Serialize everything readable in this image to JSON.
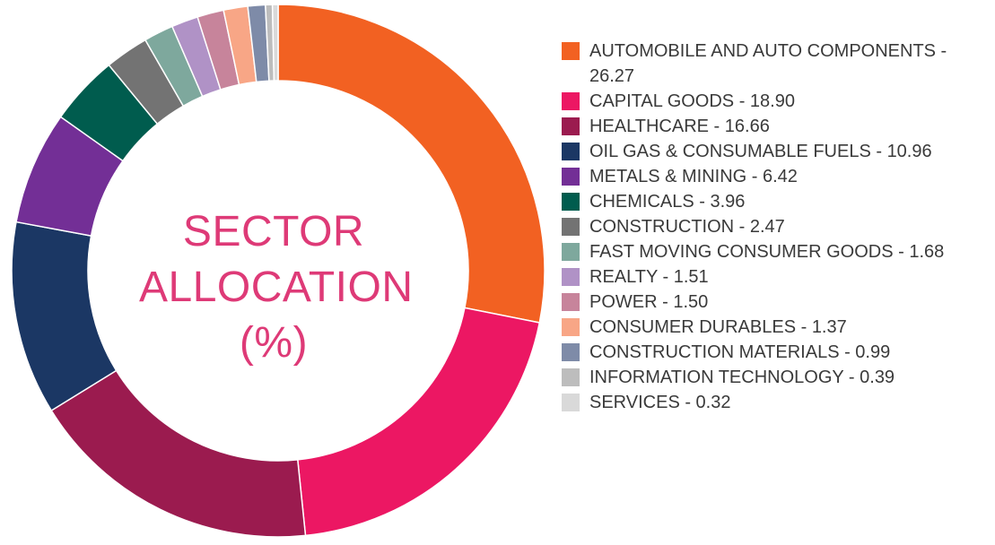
{
  "chart_data": {
    "type": "pie",
    "donut": true,
    "title": "SECTOR ALLOCATION (%)",
    "title_lines": [
      "SECTOR",
      "ALLOCATION",
      "(%)"
    ],
    "legend_position": "right",
    "slices": [
      {
        "label": "AUTOMOBILE AND AUTO COMPONENTS",
        "value": 26.27,
        "color": "#f26122",
        "legend_text": "AUTOMOBILE AND AUTO COMPONENTS - 26.27"
      },
      {
        "label": "CAPITAL GOODS",
        "value": 18.9,
        "color": "#ec1763",
        "legend_text": "CAPITAL GOODS - 18.90"
      },
      {
        "label": "HEALTHCARE",
        "value": 16.66,
        "color": "#9b1b4f",
        "legend_text": "HEALTHCARE - 16.66"
      },
      {
        "label": "OIL GAS & CONSUMABLE FUELS",
        "value": 10.96,
        "color": "#1b3764",
        "legend_text": "OIL GAS & CONSUMABLE FUELS - 10.96"
      },
      {
        "label": "METALS & MINING",
        "value": 6.42,
        "color": "#732f96",
        "legend_text": "METALS & MINING - 6.42"
      },
      {
        "label": "CHEMICALS",
        "value": 3.96,
        "color": "#005c4e",
        "legend_text": "CHEMICALS - 3.96"
      },
      {
        "label": "CONSTRUCTION",
        "value": 2.47,
        "color": "#737373",
        "legend_text": "CONSTRUCTION - 2.47"
      },
      {
        "label": "FAST MOVING CONSUMER GOODS",
        "value": 1.68,
        "color": "#7ea89d",
        "legend_text": "FAST MOVING CONSUMER GOODS - 1.68"
      },
      {
        "label": "REALTY",
        "value": 1.51,
        "color": "#b092c6",
        "legend_text": "REALTY - 1.51"
      },
      {
        "label": "POWER",
        "value": 1.5,
        "color": "#c7849b",
        "legend_text": "POWER - 1.50"
      },
      {
        "label": "CONSUMER DURABLES",
        "value": 1.37,
        "color": "#f8a686",
        "legend_text": "CONSUMER DURABLES - 1.37"
      },
      {
        "label": "CONSTRUCTION MATERIALS",
        "value": 0.99,
        "color": "#7e8ba8",
        "legend_text": "CONSTRUCTION MATERIALS - 0.99"
      },
      {
        "label": "INFORMATION TECHNOLOGY",
        "value": 0.39,
        "color": "#bdbdbd",
        "legend_text": "INFORMATION TECHNOLOGY - 0.39"
      },
      {
        "label": "SERVICES",
        "value": 0.32,
        "color": "#d9d9d9",
        "legend_text": "SERVICES - 0.32"
      }
    ]
  }
}
